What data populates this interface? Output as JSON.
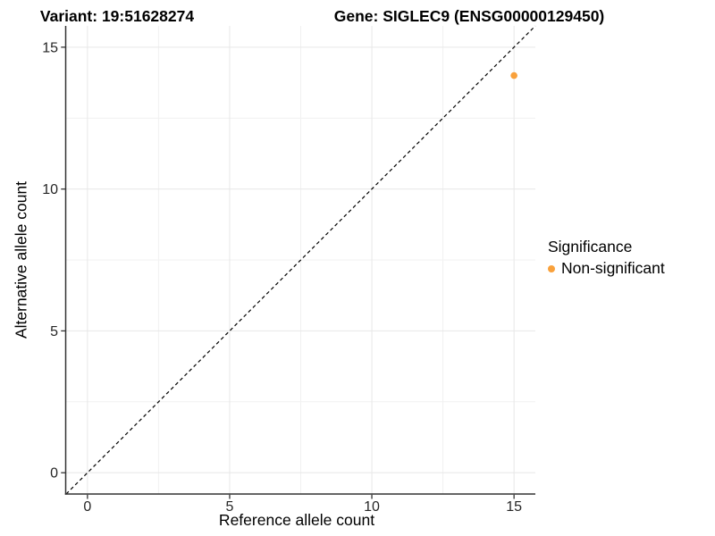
{
  "chart_data": {
    "type": "scatter",
    "title_left": "Variant: 19:51628274",
    "title_right": "Gene: SIGLEC9 (ENSG00000129450)",
    "xlabel": "Reference allele count",
    "ylabel": "Alternative allele count",
    "xlim": [
      -0.75,
      15.75
    ],
    "ylim": [
      -0.75,
      15.75
    ],
    "x_ticks": [
      0,
      5,
      10,
      15
    ],
    "y_ticks": [
      0,
      5,
      10,
      15
    ],
    "x_minor_ticks": [
      2.5,
      7.5,
      12.5
    ],
    "y_minor_ticks": [
      2.5,
      7.5,
      12.5
    ],
    "grid": "major and minor gridlines, white panel",
    "identity_line": {
      "style": "dashed",
      "color": "#000000",
      "from": -0.75,
      "to": 15.75
    },
    "series": [
      {
        "name": "Non-significant",
        "color": "#F9A13B",
        "marker": "circle",
        "points": [
          {
            "x": 15,
            "y": 14
          }
        ]
      }
    ],
    "legend": {
      "title": "Significance",
      "position": "right",
      "entries": [
        {
          "label": "Non-significant",
          "color": "#F9A13B",
          "marker": "circle"
        }
      ]
    },
    "style": {
      "grid_major_color": "#e7e7e7",
      "grid_minor_color": "#f1f1f1",
      "axis_line_color": "#333333",
      "tick_color": "#333333",
      "tick_label_color": "#262626"
    }
  }
}
